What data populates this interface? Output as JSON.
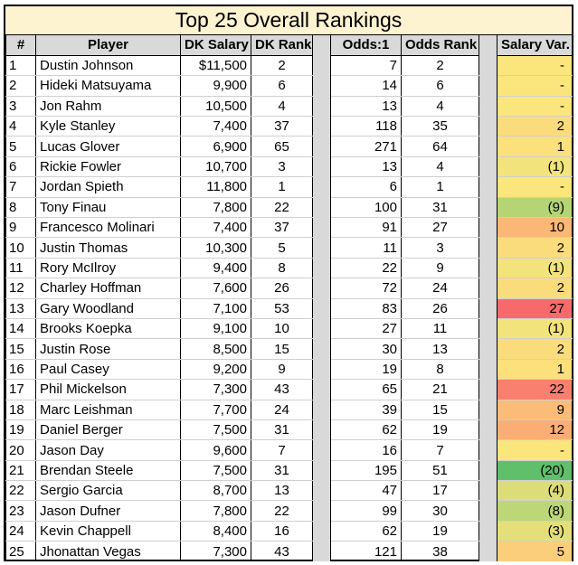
{
  "title": "Top 25 Overall Rankings",
  "headers": {
    "num": "#",
    "player": "Player",
    "salary": "DK Salary",
    "dk_rank": "DK Rank",
    "odds": "Odds:1",
    "odds_rank": "Odds Rank",
    "var": "Salary Var."
  },
  "colors": {
    "var_good_strong": "#5fbf6b",
    "var_neutral": "#fbe57d",
    "var_bad_strong": "#f8696b"
  },
  "rows": [
    {
      "num": "1",
      "player": "Dustin Johnson",
      "salary": "$11,500",
      "dk_rank": "2",
      "odds": "7",
      "odds_rank": "2",
      "var": "-",
      "var_value": 0
    },
    {
      "num": "2",
      "player": "Hideki Matsuyama",
      "salary": "9,900",
      "dk_rank": "6",
      "odds": "14",
      "odds_rank": "6",
      "var": "-",
      "var_value": 0
    },
    {
      "num": "3",
      "player": "Jon Rahm",
      "salary": "10,500",
      "dk_rank": "4",
      "odds": "13",
      "odds_rank": "4",
      "var": "-",
      "var_value": 0
    },
    {
      "num": "4",
      "player": "Kyle Stanley",
      "salary": "7,400",
      "dk_rank": "37",
      "odds": "118",
      "odds_rank": "35",
      "var": "2",
      "var_value": 2
    },
    {
      "num": "5",
      "player": "Lucas Glover",
      "salary": "6,900",
      "dk_rank": "65",
      "odds": "271",
      "odds_rank": "64",
      "var": "1",
      "var_value": 1
    },
    {
      "num": "6",
      "player": "Rickie Fowler",
      "salary": "10,700",
      "dk_rank": "3",
      "odds": "13",
      "odds_rank": "4",
      "var": "(1)",
      "var_value": -1
    },
    {
      "num": "7",
      "player": "Jordan Spieth",
      "salary": "11,800",
      "dk_rank": "1",
      "odds": "6",
      "odds_rank": "1",
      "var": "-",
      "var_value": 0
    },
    {
      "num": "8",
      "player": "Tony Finau",
      "salary": "7,800",
      "dk_rank": "22",
      "odds": "100",
      "odds_rank": "31",
      "var": "(9)",
      "var_value": -9
    },
    {
      "num": "9",
      "player": "Francesco Molinari",
      "salary": "7,400",
      "dk_rank": "37",
      "odds": "91",
      "odds_rank": "27",
      "var": "10",
      "var_value": 10
    },
    {
      "num": "10",
      "player": "Justin Thomas",
      "salary": "10,300",
      "dk_rank": "5",
      "odds": "11",
      "odds_rank": "3",
      "var": "2",
      "var_value": 2
    },
    {
      "num": "11",
      "player": "Rory McIlroy",
      "salary": "9,400",
      "dk_rank": "8",
      "odds": "22",
      "odds_rank": "9",
      "var": "(1)",
      "var_value": -1
    },
    {
      "num": "12",
      "player": "Charley Hoffman",
      "salary": "7,600",
      "dk_rank": "26",
      "odds": "72",
      "odds_rank": "24",
      "var": "2",
      "var_value": 2
    },
    {
      "num": "13",
      "player": "Gary Woodland",
      "salary": "7,100",
      "dk_rank": "53",
      "odds": "83",
      "odds_rank": "26",
      "var": "27",
      "var_value": 27
    },
    {
      "num": "14",
      "player": "Brooks Koepka",
      "salary": "9,100",
      "dk_rank": "10",
      "odds": "27",
      "odds_rank": "11",
      "var": "(1)",
      "var_value": -1
    },
    {
      "num": "15",
      "player": "Justin Rose",
      "salary": "8,500",
      "dk_rank": "15",
      "odds": "30",
      "odds_rank": "13",
      "var": "2",
      "var_value": 2
    },
    {
      "num": "16",
      "player": "Paul Casey",
      "salary": "9,200",
      "dk_rank": "9",
      "odds": "19",
      "odds_rank": "8",
      "var": "1",
      "var_value": 1
    },
    {
      "num": "17",
      "player": "Phil Mickelson",
      "salary": "7,300",
      "dk_rank": "43",
      "odds": "65",
      "odds_rank": "21",
      "var": "22",
      "var_value": 22
    },
    {
      "num": "18",
      "player": "Marc Leishman",
      "salary": "7,700",
      "dk_rank": "24",
      "odds": "39",
      "odds_rank": "15",
      "var": "9",
      "var_value": 9
    },
    {
      "num": "19",
      "player": "Daniel Berger",
      "salary": "7,500",
      "dk_rank": "31",
      "odds": "62",
      "odds_rank": "19",
      "var": "12",
      "var_value": 12
    },
    {
      "num": "20",
      "player": "Jason Day",
      "salary": "9,600",
      "dk_rank": "7",
      "odds": "16",
      "odds_rank": "7",
      "var": "-",
      "var_value": 0
    },
    {
      "num": "21",
      "player": "Brendan Steele",
      "salary": "7,500",
      "dk_rank": "31",
      "odds": "195",
      "odds_rank": "51",
      "var": "(20)",
      "var_value": -20
    },
    {
      "num": "22",
      "player": "Sergio Garcia",
      "salary": "8,700",
      "dk_rank": "13",
      "odds": "47",
      "odds_rank": "17",
      "var": "(4)",
      "var_value": -4
    },
    {
      "num": "23",
      "player": "Jason Dufner",
      "salary": "7,800",
      "dk_rank": "22",
      "odds": "99",
      "odds_rank": "30",
      "var": "(8)",
      "var_value": -8
    },
    {
      "num": "24",
      "player": "Kevin Chappell",
      "salary": "8,400",
      "dk_rank": "16",
      "odds": "62",
      "odds_rank": "19",
      "var": "(3)",
      "var_value": -3
    },
    {
      "num": "25",
      "player": "Jhonattan Vegas",
      "salary": "7,300",
      "dk_rank": "43",
      "odds": "121",
      "odds_rank": "38",
      "var": "5",
      "var_value": 5
    }
  ]
}
